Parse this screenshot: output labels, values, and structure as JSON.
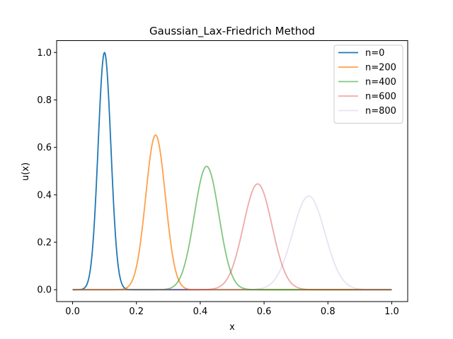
{
  "chart_data": {
    "type": "line",
    "title": "Gaussian_Lax-Friedrich Method",
    "xlabel": "x",
    "ylabel": "u(x)",
    "xlim": [
      -0.05,
      1.05
    ],
    "ylim": [
      -0.05,
      1.05
    ],
    "xticks": [
      "0.0",
      "0.2",
      "0.4",
      "0.6",
      "0.8",
      "1.0"
    ],
    "yticks": [
      "0.0",
      "0.2",
      "0.4",
      "0.6",
      "0.8",
      "1.0"
    ],
    "grid": false,
    "legend_position": "top-right",
    "series": [
      {
        "name": "n=0",
        "color": "#1f77b4",
        "opacity": 1.0,
        "center": 0.1,
        "peak": 1.0,
        "sigma": 0.02
      },
      {
        "name": "n=200",
        "color": "#ff7f0e",
        "opacity": 0.75,
        "center": 0.26,
        "peak": 0.652,
        "sigma": 0.0307
      },
      {
        "name": "n=400",
        "color": "#2ca02c",
        "opacity": 0.6,
        "center": 0.42,
        "peak": 0.52,
        "sigma": 0.0385
      },
      {
        "name": "n=600",
        "color": "#d62728",
        "opacity": 0.4,
        "center": 0.58,
        "peak": 0.446,
        "sigma": 0.0448
      },
      {
        "name": "n=800",
        "color": "#9467bd",
        "opacity": 0.2,
        "center": 0.74,
        "peak": 0.395,
        "sigma": 0.0506
      }
    ]
  }
}
